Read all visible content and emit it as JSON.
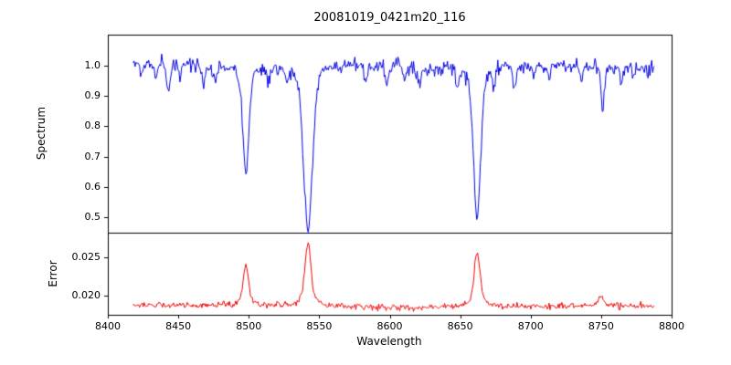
{
  "chart_data": {
    "type": "line",
    "title": "20081019_0421m20_116",
    "xlabel": "Wavelength",
    "xlim": [
      8400,
      8800
    ],
    "x_data_range": [
      8418,
      8788
    ],
    "x_step": 0.65,
    "grid": false,
    "x_ticks": [
      {
        "value": 8400,
        "label": "8400"
      },
      {
        "value": 8450,
        "label": "8450"
      },
      {
        "value": 8500,
        "label": "8500"
      },
      {
        "value": 8550,
        "label": "8550"
      },
      {
        "value": 8600,
        "label": "8600"
      },
      {
        "value": 8650,
        "label": "8650"
      },
      {
        "value": 8700,
        "label": "8700"
      },
      {
        "value": 8750,
        "label": "8750"
      },
      {
        "value": 8800,
        "label": "8800"
      }
    ],
    "panels": [
      {
        "name": "spectrum",
        "ylabel": "Spectrum",
        "color": "#0000dd",
        "ylim": [
          0.449,
          1.102
        ],
        "y_ticks": [
          {
            "value": 0.5,
            "label": "0.5"
          },
          {
            "value": 0.6,
            "label": "0.6"
          },
          {
            "value": 0.7,
            "label": "0.7"
          },
          {
            "value": 0.8,
            "label": "0.8"
          },
          {
            "value": 0.9,
            "label": "0.9"
          },
          {
            "value": 1.0,
            "label": "1.0"
          }
        ],
        "continuum": 1.0,
        "noise_sigma": 0.012,
        "absorption_lines": [
          {
            "center": 8498,
            "depth": 0.35,
            "width": 2.0
          },
          {
            "center": 8542,
            "depth": 0.54,
            "width": 3.0
          },
          {
            "center": 8662,
            "depth": 0.49,
            "width": 2.4
          }
        ],
        "minor_lines": [
          {
            "center": 8424,
            "depth": 0.05,
            "width": 1.0
          },
          {
            "center": 8434,
            "depth": 0.04,
            "width": 0.9
          },
          {
            "center": 8443,
            "depth": 0.09,
            "width": 1.1
          },
          {
            "center": 8451,
            "depth": 0.05,
            "width": 0.9
          },
          {
            "center": 8468,
            "depth": 0.06,
            "width": 1.0
          },
          {
            "center": 8476,
            "depth": 0.05,
            "width": 1.0
          },
          {
            "center": 8514,
            "depth": 0.05,
            "width": 1.0
          },
          {
            "center": 8527,
            "depth": 0.04,
            "width": 1.0
          },
          {
            "center": 8583,
            "depth": 0.06,
            "width": 1.1
          },
          {
            "center": 8598,
            "depth": 0.07,
            "width": 1.1
          },
          {
            "center": 8611,
            "depth": 0.04,
            "width": 1.0
          },
          {
            "center": 8621,
            "depth": 0.06,
            "width": 1.0
          },
          {
            "center": 8648,
            "depth": 0.05,
            "width": 1.0
          },
          {
            "center": 8674,
            "depth": 0.07,
            "width": 1.0
          },
          {
            "center": 8688,
            "depth": 0.07,
            "width": 1.1
          },
          {
            "center": 8702,
            "depth": 0.04,
            "width": 1.0
          },
          {
            "center": 8713,
            "depth": 0.05,
            "width": 1.0
          },
          {
            "center": 8736,
            "depth": 0.05,
            "width": 1.0
          },
          {
            "center": 8751,
            "depth": 0.13,
            "width": 1.3
          },
          {
            "center": 8764,
            "depth": 0.05,
            "width": 1.0
          },
          {
            "center": 8773,
            "depth": 0.04,
            "width": 1.0
          }
        ]
      },
      {
        "name": "error",
        "ylabel": "Error",
        "color": "#ee0000",
        "ylim": [
          0.0176,
          0.0281
        ],
        "y_ticks": [
          {
            "value": 0.02,
            "label": "0.020"
          },
          {
            "value": 0.025,
            "label": "0.025"
          }
        ],
        "baseline": 0.0187,
        "noise_sigma": 0.0002,
        "peaks": [
          {
            "center": 8498,
            "amplitude": 0.0052,
            "width": 1.8
          },
          {
            "center": 8542,
            "amplitude": 0.008,
            "width": 2.0
          },
          {
            "center": 8662,
            "amplitude": 0.007,
            "width": 1.9
          },
          {
            "center": 8750,
            "amplitude": 0.0013,
            "width": 1.6
          }
        ]
      }
    ]
  }
}
